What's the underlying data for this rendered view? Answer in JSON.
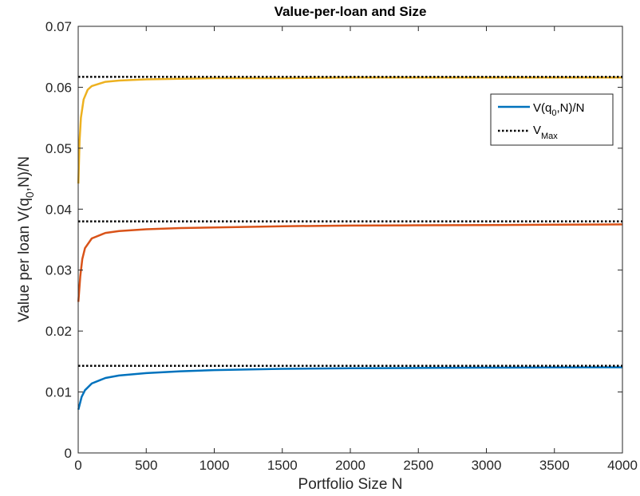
{
  "chart_data": {
    "type": "line",
    "title": "Value-per-loan and Size",
    "xlabel": "Portfolio Size N",
    "ylabel": {
      "prefix": "Value per loan V(q",
      "subscript": "0",
      "suffix": ",N)/N"
    },
    "xlim": [
      0,
      4000
    ],
    "ylim": [
      0,
      0.07
    ],
    "x_ticks": [
      0,
      500,
      1000,
      1500,
      2000,
      2500,
      3000,
      3500,
      4000
    ],
    "x_tick_labels": [
      "0",
      "500",
      "1000",
      "1500",
      "2000",
      "2500",
      "3000",
      "3500",
      "4000"
    ],
    "y_ticks": [
      0,
      0.01,
      0.02,
      0.03,
      0.04,
      0.05,
      0.06,
      0.07
    ],
    "y_tick_labels": [
      "0",
      "0.01",
      "0.02",
      "0.03",
      "0.04",
      "0.05",
      "0.06",
      "0.07"
    ],
    "grid": false,
    "legend_position": "top-right",
    "legend": [
      {
        "prefix": "V(q",
        "subscript": "0",
        "suffix": ",N)/N",
        "style": "solid",
        "color": "#0072BD"
      },
      {
        "prefix": "V",
        "subscript": "Max",
        "suffix": "",
        "style": "dotted",
        "color": "#000000"
      }
    ],
    "series": [
      {
        "color": "#0072BD",
        "vmax": 0.0143,
        "points": [
          [
            1,
            0.0071
          ],
          [
            25,
            0.0092
          ],
          [
            50,
            0.0103
          ],
          [
            100,
            0.0114
          ],
          [
            200,
            0.0123
          ],
          [
            300,
            0.0127
          ],
          [
            500,
            0.0131
          ],
          [
            750,
            0.0134
          ],
          [
            1000,
            0.0136
          ],
          [
            1500,
            0.0138
          ],
          [
            2000,
            0.0139
          ],
          [
            2500,
            0.01395
          ],
          [
            3000,
            0.014
          ],
          [
            3500,
            0.01402
          ],
          [
            4000,
            0.01405
          ]
        ]
      },
      {
        "color": "#D95319",
        "vmax": 0.038,
        "points": [
          [
            1,
            0.0248
          ],
          [
            15,
            0.029
          ],
          [
            30,
            0.0318
          ],
          [
            50,
            0.0336
          ],
          [
            100,
            0.0352
          ],
          [
            200,
            0.0361
          ],
          [
            300,
            0.0364
          ],
          [
            500,
            0.0367
          ],
          [
            750,
            0.0369
          ],
          [
            1000,
            0.037
          ],
          [
            1500,
            0.0372
          ],
          [
            2000,
            0.0373
          ],
          [
            2500,
            0.03735
          ],
          [
            3000,
            0.0374
          ],
          [
            3500,
            0.03745
          ],
          [
            4000,
            0.0375
          ]
        ]
      },
      {
        "color": "#EDB120",
        "vmax": 0.0617,
        "points": [
          [
            1,
            0.0442
          ],
          [
            10,
            0.0512
          ],
          [
            20,
            0.055
          ],
          [
            40,
            0.058
          ],
          [
            70,
            0.0596
          ],
          [
            100,
            0.0602
          ],
          [
            200,
            0.0609
          ],
          [
            300,
            0.0611
          ],
          [
            500,
            0.0613
          ],
          [
            750,
            0.0614
          ],
          [
            1000,
            0.0615
          ],
          [
            1500,
            0.0615
          ],
          [
            2000,
            0.0616
          ],
          [
            3000,
            0.0616
          ],
          [
            4000,
            0.0616
          ]
        ]
      }
    ]
  }
}
